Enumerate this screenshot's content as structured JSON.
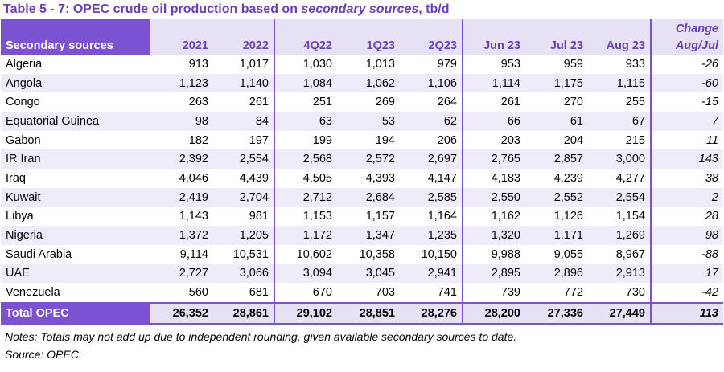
{
  "title": {
    "prefix": "Table 5 - 7: OPEC crude oil production based on ",
    "emphasis": "secondary sources",
    "suffix": ", tb/d"
  },
  "table": {
    "header": [
      "Secondary sources",
      "2021",
      "2022",
      "4Q22",
      "1Q23",
      "2Q23",
      "Jun 23",
      "Jul 23",
      "Aug 23",
      "Change Aug/Jul"
    ],
    "rows": [
      [
        "Algeria",
        "913",
        "1,017",
        "1,030",
        "1,013",
        "979",
        "953",
        "959",
        "933",
        "-26"
      ],
      [
        "Angola",
        "1,123",
        "1,140",
        "1,084",
        "1,062",
        "1,106",
        "1,114",
        "1,175",
        "1,115",
        "-60"
      ],
      [
        "Congo",
        "263",
        "261",
        "251",
        "269",
        "264",
        "261",
        "270",
        "255",
        "-15"
      ],
      [
        "Equatorial Guinea",
        "98",
        "84",
        "63",
        "53",
        "62",
        "66",
        "61",
        "67",
        "7"
      ],
      [
        "Gabon",
        "182",
        "197",
        "199",
        "194",
        "206",
        "203",
        "204",
        "215",
        "11"
      ],
      [
        "IR Iran",
        "2,392",
        "2,554",
        "2,568",
        "2,572",
        "2,697",
        "2,765",
        "2,857",
        "3,000",
        "143"
      ],
      [
        "Iraq",
        "4,046",
        "4,439",
        "4,505",
        "4,393",
        "4,147",
        "4,183",
        "4,239",
        "4,277",
        "38"
      ],
      [
        "Kuwait",
        "2,419",
        "2,704",
        "2,712",
        "2,684",
        "2,585",
        "2,550",
        "2,552",
        "2,554",
        "2"
      ],
      [
        "Libya",
        "1,143",
        "981",
        "1,153",
        "1,157",
        "1,164",
        "1,162",
        "1,126",
        "1,154",
        "28"
      ],
      [
        "Nigeria",
        "1,372",
        "1,205",
        "1,172",
        "1,347",
        "1,235",
        "1,320",
        "1,171",
        "1,269",
        "98"
      ],
      [
        "Saudi Arabia",
        "9,114",
        "10,531",
        "10,602",
        "10,358",
        "10,150",
        "9,988",
        "9,055",
        "8,967",
        "-88"
      ],
      [
        "UAE",
        "2,727",
        "3,066",
        "3,094",
        "3,045",
        "2,941",
        "2,895",
        "2,896",
        "2,913",
        "17"
      ],
      [
        "Venezuela",
        "560",
        "681",
        "670",
        "703",
        "741",
        "739",
        "772",
        "730",
        "-42"
      ]
    ],
    "total": [
      "Total  OPEC",
      "26,352",
      "28,861",
      "29,102",
      "28,851",
      "28,276",
      "28,200",
      "27,336",
      "27,449",
      "113"
    ]
  },
  "notes": "Notes: Totals may not add up due to independent rounding, given available secondary sources to date.",
  "source": "Source: OPEC."
}
